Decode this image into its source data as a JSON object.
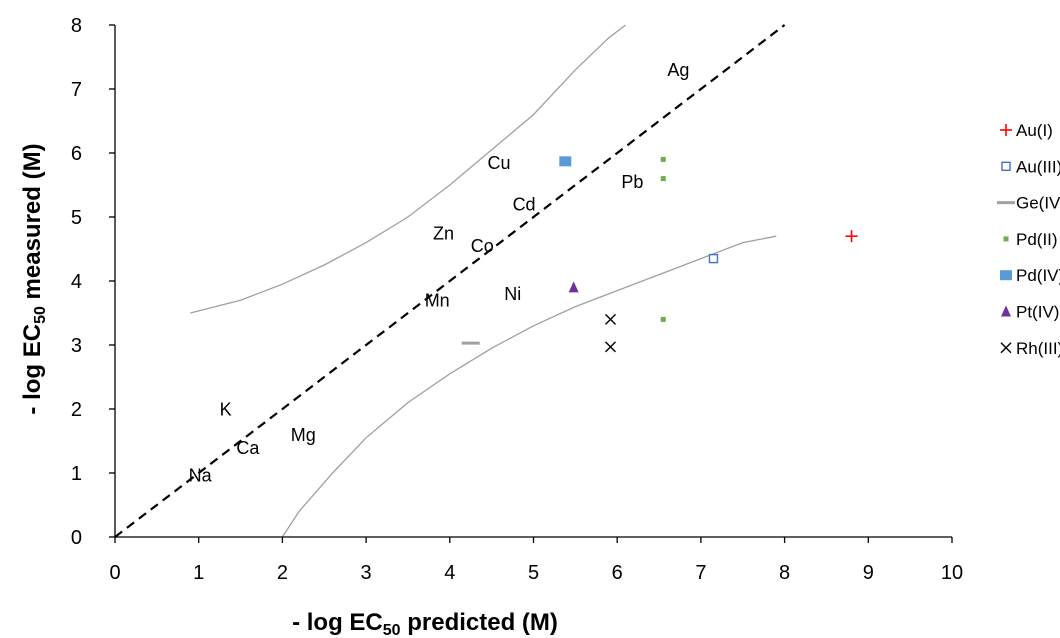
{
  "chart_data": {
    "type": "scatter",
    "xlabel": {
      "prefix": "- log EC",
      "sub": "50",
      "suffix": " predicted (M)"
    },
    "ylabel": {
      "prefix": "- log EC",
      "sub": "50",
      "suffix": " measured (M)"
    },
    "xlim": [
      0,
      10
    ],
    "ylim": [
      0,
      8
    ],
    "xticks": [
      "0",
      "1",
      "2",
      "3",
      "4",
      "5",
      "6",
      "7",
      "8",
      "9",
      "10"
    ],
    "yticks": [
      "0",
      "1",
      "2",
      "3",
      "4",
      "5",
      "6",
      "7",
      "8"
    ],
    "grid": false,
    "legend_position": "right",
    "reference_line": {
      "style": "dashed",
      "color": "#000000",
      "points": [
        [
          0,
          0
        ],
        [
          8,
          8
        ]
      ]
    },
    "bounds": [
      {
        "color": "#a0a0a0",
        "points": [
          [
            0.9,
            3.5
          ],
          [
            1.5,
            3.7
          ],
          [
            2.0,
            3.95
          ],
          [
            2.5,
            4.25
          ],
          [
            3.0,
            4.6
          ],
          [
            3.5,
            5.0
          ],
          [
            4.0,
            5.5
          ],
          [
            4.5,
            6.05
          ],
          [
            5.0,
            6.6
          ],
          [
            5.5,
            7.3
          ],
          [
            5.9,
            7.8
          ],
          [
            6.1,
            8.0
          ]
        ]
      },
      {
        "color": "#a0a0a0",
        "points": [
          [
            2.0,
            0.0
          ],
          [
            2.2,
            0.4
          ],
          [
            2.6,
            1.0
          ],
          [
            3.0,
            1.55
          ],
          [
            3.5,
            2.1
          ],
          [
            4.0,
            2.55
          ],
          [
            4.5,
            2.95
          ],
          [
            5.0,
            3.3
          ],
          [
            5.5,
            3.6
          ],
          [
            6.0,
            3.85
          ],
          [
            6.5,
            4.1
          ],
          [
            7.0,
            4.35
          ],
          [
            7.5,
            4.6
          ],
          [
            7.9,
            4.7
          ]
        ]
      }
    ],
    "element_labels": [
      {
        "text": "Ag",
        "x": 6.6,
        "y": 7.2
      },
      {
        "text": "Cu",
        "x": 4.45,
        "y": 5.75
      },
      {
        "text": "Pb",
        "x": 6.05,
        "y": 5.45
      },
      {
        "text": "Cd",
        "x": 4.75,
        "y": 5.1
      },
      {
        "text": "Zn",
        "x": 3.8,
        "y": 4.65
      },
      {
        "text": "Co",
        "x": 4.25,
        "y": 4.45
      },
      {
        "text": "Mn",
        "x": 3.7,
        "y": 3.6
      },
      {
        "text": "Ni",
        "x": 4.65,
        "y": 3.7
      },
      {
        "text": "K",
        "x": 1.25,
        "y": 1.9
      },
      {
        "text": "Mg",
        "x": 2.1,
        "y": 1.5
      },
      {
        "text": "Ca",
        "x": 1.45,
        "y": 1.3
      },
      {
        "text": "Na",
        "x": 0.88,
        "y": 0.87
      }
    ],
    "series": [
      {
        "name": "Au(I)",
        "marker": "plus",
        "color": "#ff0000",
        "points": [
          [
            8.8,
            4.7
          ]
        ]
      },
      {
        "name": "Au(III)",
        "marker": "square-open",
        "color": "#4472c4",
        "points": [
          [
            7.15,
            4.35
          ]
        ]
      },
      {
        "name": "Ge(IV)",
        "marker": "dash",
        "color": "#a0a0a0",
        "points": [
          [
            4.25,
            3.03
          ]
        ]
      },
      {
        "name": "Pd(II)",
        "marker": "small-square",
        "color": "#70ad47",
        "points": [
          [
            6.55,
            5.9
          ],
          [
            6.55,
            5.6
          ],
          [
            6.55,
            3.4
          ]
        ]
      },
      {
        "name": "Pd(IV)",
        "marker": "square",
        "color": "#5b9bd5",
        "points": [
          [
            5.38,
            5.87
          ]
        ]
      },
      {
        "name": "Pt(IV)",
        "marker": "triangle",
        "color": "#7030a0",
        "points": [
          [
            5.48,
            3.9
          ]
        ]
      },
      {
        "name": "Rh(III)",
        "marker": "x",
        "color": "#000000",
        "points": [
          [
            5.92,
            3.4
          ],
          [
            5.92,
            2.97
          ]
        ]
      }
    ]
  }
}
